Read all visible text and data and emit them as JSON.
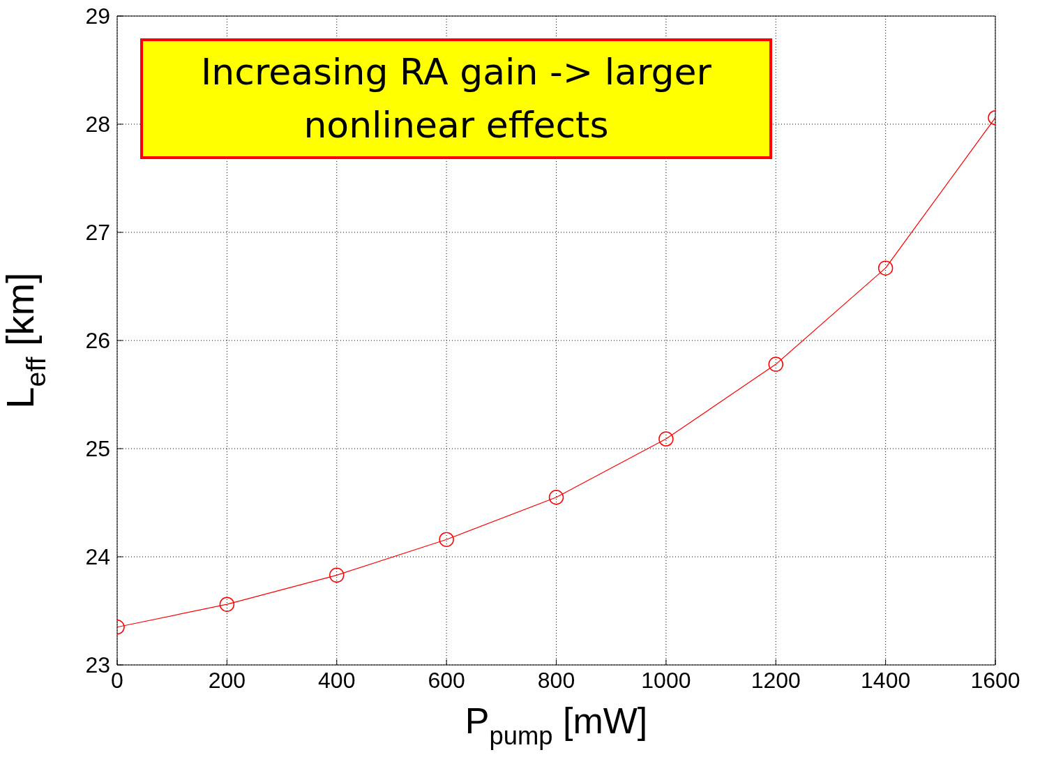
{
  "chart_data": {
    "type": "line",
    "xlabel": "P$_{pump}$ [mW]",
    "ylabel": "L$_{eff}$ [km]",
    "x": [
      0,
      200,
      400,
      600,
      800,
      1000,
      1200,
      1400,
      1600
    ],
    "series": [
      {
        "color": "#ff0000",
        "values": [
          23.35,
          23.56,
          23.83,
          24.16,
          24.55,
          25.09,
          25.78,
          26.67,
          28.06
        ]
      }
    ],
    "xlim": [
      0,
      1600
    ],
    "xticks": [
      0,
      200,
      400,
      600,
      800,
      1000,
      1200,
      1400,
      1600
    ],
    "ylim": [
      23,
      29
    ],
    "yticks": [
      23,
      24,
      25,
      26,
      27,
      28,
      29
    ],
    "grid": true,
    "marker": "circle",
    "line_style": "solid",
    "legend": false,
    "annotations": [
      "Increasing RA gain -> larger nonlinear effects"
    ]
  }
}
